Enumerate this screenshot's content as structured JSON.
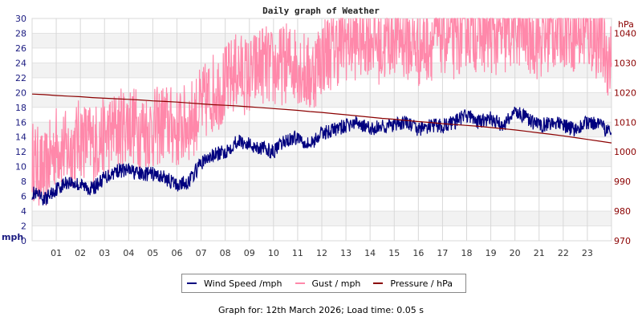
{
  "title": "Daily graph of Weather",
  "footer": "Graph for: 12th March 2026; Load time: 0.05 s",
  "legend": [
    {
      "label": "Wind Speed /mph",
      "color": "#00007f"
    },
    {
      "label": "Gust / mph",
      "color": "#ff88aa"
    },
    {
      "label": "Pressure / hPa",
      "color": "#8b0000"
    }
  ],
  "chart_data": {
    "type": "line",
    "title": "Daily graph of Weather",
    "xlabel": "",
    "ylabel": "mph",
    "ylabel_right": "hPa",
    "x_ticks": [
      "01",
      "02",
      "03",
      "04",
      "05",
      "06",
      "07",
      "08",
      "09",
      "10",
      "11",
      "12",
      "13",
      "14",
      "15",
      "16",
      "17",
      "18",
      "19",
      "20",
      "21",
      "22",
      "23"
    ],
    "y_ticks_left": [
      "0",
      "2",
      "4",
      "6",
      "8",
      "10",
      "12",
      "14",
      "16",
      "18",
      "20",
      "22",
      "24",
      "26",
      "28",
      "30"
    ],
    "y_ticks_right": [
      "970",
      "980",
      "990",
      "1000",
      "1010",
      "1020",
      "1030",
      "1040"
    ],
    "ylim": [
      0,
      30
    ],
    "ylim_right": [
      970,
      1045
    ],
    "xlim": [
      0,
      24
    ],
    "grid": true,
    "legend_position": "bottom",
    "x": [
      0,
      0.5,
      1,
      1.5,
      2,
      2.5,
      3,
      3.5,
      4,
      4.5,
      5,
      5.5,
      6,
      6.5,
      7,
      7.5,
      8,
      8.5,
      9,
      9.5,
      10,
      10.5,
      11,
      11.5,
      12,
      12.5,
      13,
      13.5,
      14,
      14.5,
      15,
      15.5,
      16,
      16.5,
      17,
      17.5,
      18,
      18.5,
      19,
      19.5,
      20,
      20.5,
      21,
      21.5,
      22,
      22.5,
      23,
      23.5,
      24
    ],
    "series": [
      {
        "name": "Wind Speed /mph",
        "axis": "left",
        "color": "#00007f",
        "values": [
          6.5,
          5.5,
          7.0,
          8.0,
          7.5,
          7.0,
          8.5,
          9.5,
          9.5,
          9.0,
          9.0,
          8.5,
          7.5,
          8.0,
          10.5,
          11.5,
          12.0,
          13.5,
          13.0,
          12.5,
          12.0,
          13.5,
          14.0,
          13.0,
          14.5,
          15.0,
          15.5,
          16.0,
          15.0,
          15.5,
          15.5,
          16.0,
          15.0,
          15.5,
          15.5,
          16.0,
          17.0,
          16.0,
          16.5,
          15.5,
          17.5,
          16.5,
          15.5,
          16.0,
          15.5,
          15.0,
          16.0,
          15.5,
          14.5
        ]
      },
      {
        "name": "Gust / mph",
        "axis": "left",
        "color": "#ff88aa",
        "values": [
          11,
          9,
          13,
          12,
          14,
          13,
          14,
          15,
          16,
          15,
          15,
          16,
          15,
          16,
          18,
          20,
          21,
          23,
          22,
          24,
          23,
          24,
          24,
          22,
          25,
          26,
          27,
          27,
          28,
          26,
          28,
          27,
          26,
          27,
          28,
          27,
          29,
          28,
          28,
          27,
          29,
          28,
          27,
          28,
          29,
          28,
          28,
          27,
          24
        ]
      },
      {
        "name": "Pressure / hPa",
        "axis": "right",
        "color": "#8b0000",
        "values": [
          1019.5,
          1019.3,
          1019.0,
          1018.8,
          1018.6,
          1018.3,
          1018.1,
          1017.9,
          1017.7,
          1017.5,
          1017.2,
          1017.0,
          1016.8,
          1016.5,
          1016.2,
          1015.9,
          1015.7,
          1015.5,
          1015.2,
          1014.9,
          1014.6,
          1014.3,
          1014.0,
          1013.6,
          1013.3,
          1012.9,
          1012.5,
          1012.1,
          1011.7,
          1011.3,
          1011.0,
          1010.6,
          1010.2,
          1009.9,
          1009.5,
          1009.2,
          1008.9,
          1008.6,
          1008.2,
          1007.8,
          1007.4,
          1006.9,
          1006.4,
          1005.9,
          1005.4,
          1004.8,
          1004.2,
          1003.6,
          1003.0
        ]
      }
    ]
  },
  "axes": {
    "left_unit": "mph",
    "right_unit": "hPa"
  }
}
